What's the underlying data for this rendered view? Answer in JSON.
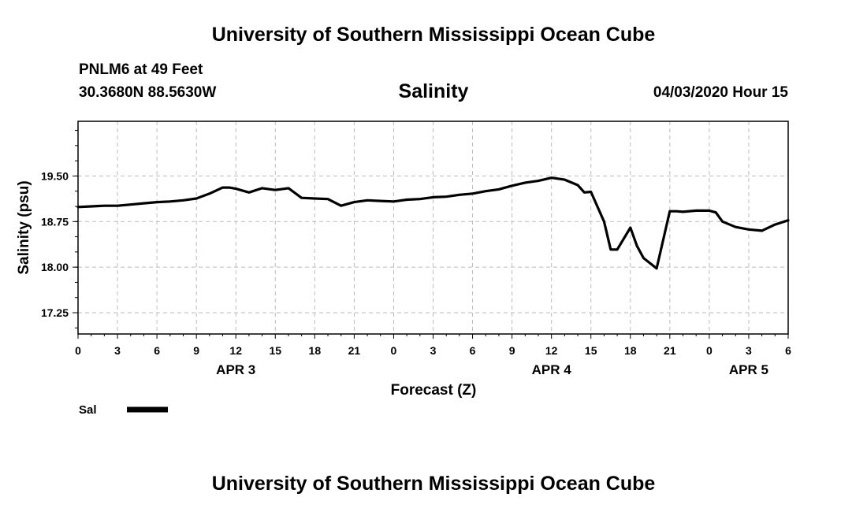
{
  "top_title": "University of Southern Mississippi Ocean Cube",
  "bottom_title": "University of Southern Mississippi Ocean Cube",
  "station": {
    "name": "PNLM6 at 49 Feet",
    "coords": "30.3680N 88.5630W"
  },
  "timestamp": "04/03/2020 Hour 15",
  "legend": {
    "label": "Sal"
  },
  "chart_data": {
    "type": "line",
    "title": "Salinity",
    "xlabel": "Forecast (Z)",
    "ylabel": "Salinity (psu)",
    "xlim": [
      0,
      54
    ],
    "ylim": [
      16.9,
      20.4
    ],
    "y_ticks": [
      17.25,
      18.0,
      18.75,
      19.5
    ],
    "y_tick_labels": [
      "17.25",
      "18.00",
      "18.75",
      "19.50"
    ],
    "x_ticks": [
      0,
      3,
      6,
      9,
      12,
      15,
      18,
      21,
      24,
      27,
      30,
      33,
      36,
      39,
      42,
      45,
      48,
      51,
      54
    ],
    "x_tick_labels": [
      "0",
      "3",
      "6",
      "9",
      "12",
      "15",
      "18",
      "21",
      "0",
      "3",
      "6",
      "9",
      "12",
      "15",
      "18",
      "21",
      "0",
      "3",
      "6"
    ],
    "date_labels": [
      {
        "x": 12,
        "label": "APR 3"
      },
      {
        "x": 36,
        "label": "APR 4"
      },
      {
        "x": 51,
        "label": "APR 5"
      }
    ],
    "grid": true,
    "series": [
      {
        "name": "Sal",
        "color": "#000000",
        "x": [
          0,
          1,
          2,
          3,
          4,
          5,
          6,
          7,
          8,
          9,
          10,
          11,
          11.5,
          12,
          13,
          14,
          15,
          16,
          17,
          18,
          19,
          20,
          21,
          22,
          23,
          24,
          25,
          26,
          27,
          28,
          29,
          30,
          31,
          32,
          33,
          34,
          35,
          36,
          37,
          38,
          38.5,
          39,
          40,
          40.5,
          41,
          42,
          42.5,
          43,
          44,
          45,
          45.5,
          46,
          47,
          48,
          48.5,
          49,
          50,
          51,
          52,
          53,
          54
        ],
        "values": [
          18.99,
          19.0,
          19.01,
          19.01,
          19.03,
          19.05,
          19.07,
          19.08,
          19.1,
          19.13,
          19.21,
          19.31,
          19.31,
          19.29,
          19.23,
          19.3,
          19.27,
          19.3,
          19.14,
          19.13,
          19.12,
          19.01,
          19.07,
          19.1,
          19.09,
          19.08,
          19.11,
          19.12,
          19.15,
          19.16,
          19.19,
          19.21,
          19.25,
          19.28,
          19.34,
          19.39,
          19.42,
          19.47,
          19.44,
          19.35,
          19.23,
          19.24,
          18.75,
          18.29,
          18.29,
          18.65,
          18.35,
          18.15,
          17.98,
          18.92,
          18.92,
          18.91,
          18.93,
          18.93,
          18.9,
          18.75,
          18.66,
          18.62,
          18.6,
          18.7,
          18.77
        ]
      }
    ]
  }
}
